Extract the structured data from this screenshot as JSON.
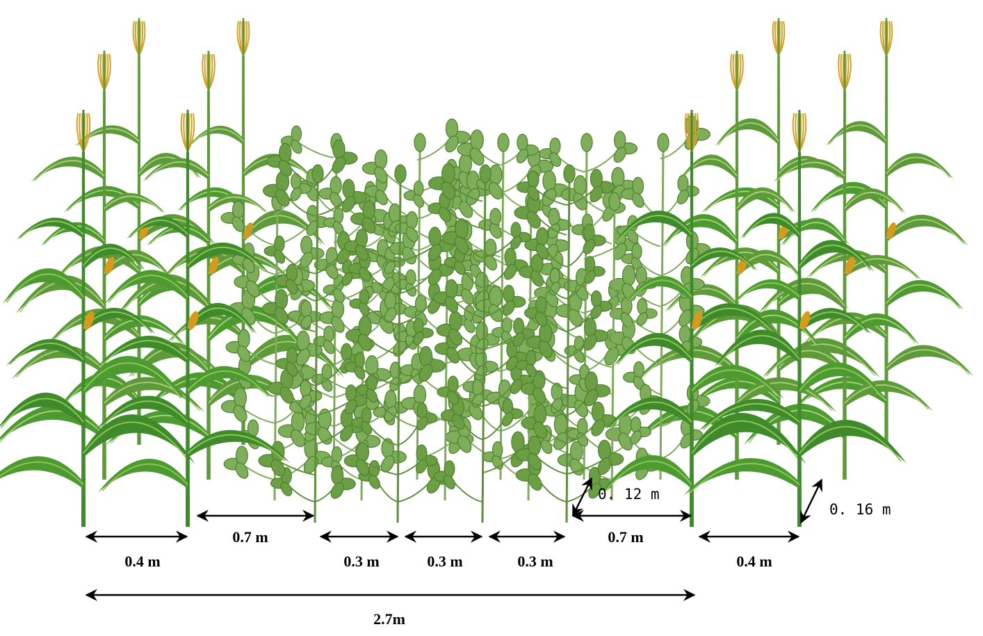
{
  "dimensions": [
    "0.4 m",
    "0.7 m",
    "0.3 m",
    "0.3 m",
    "0.3 m",
    "0.7 m",
    "0.4 m",
    "2.7m"
  ],
  "plant_spacing": [
    "0. 12 m",
    "0. 16 m"
  ]
}
